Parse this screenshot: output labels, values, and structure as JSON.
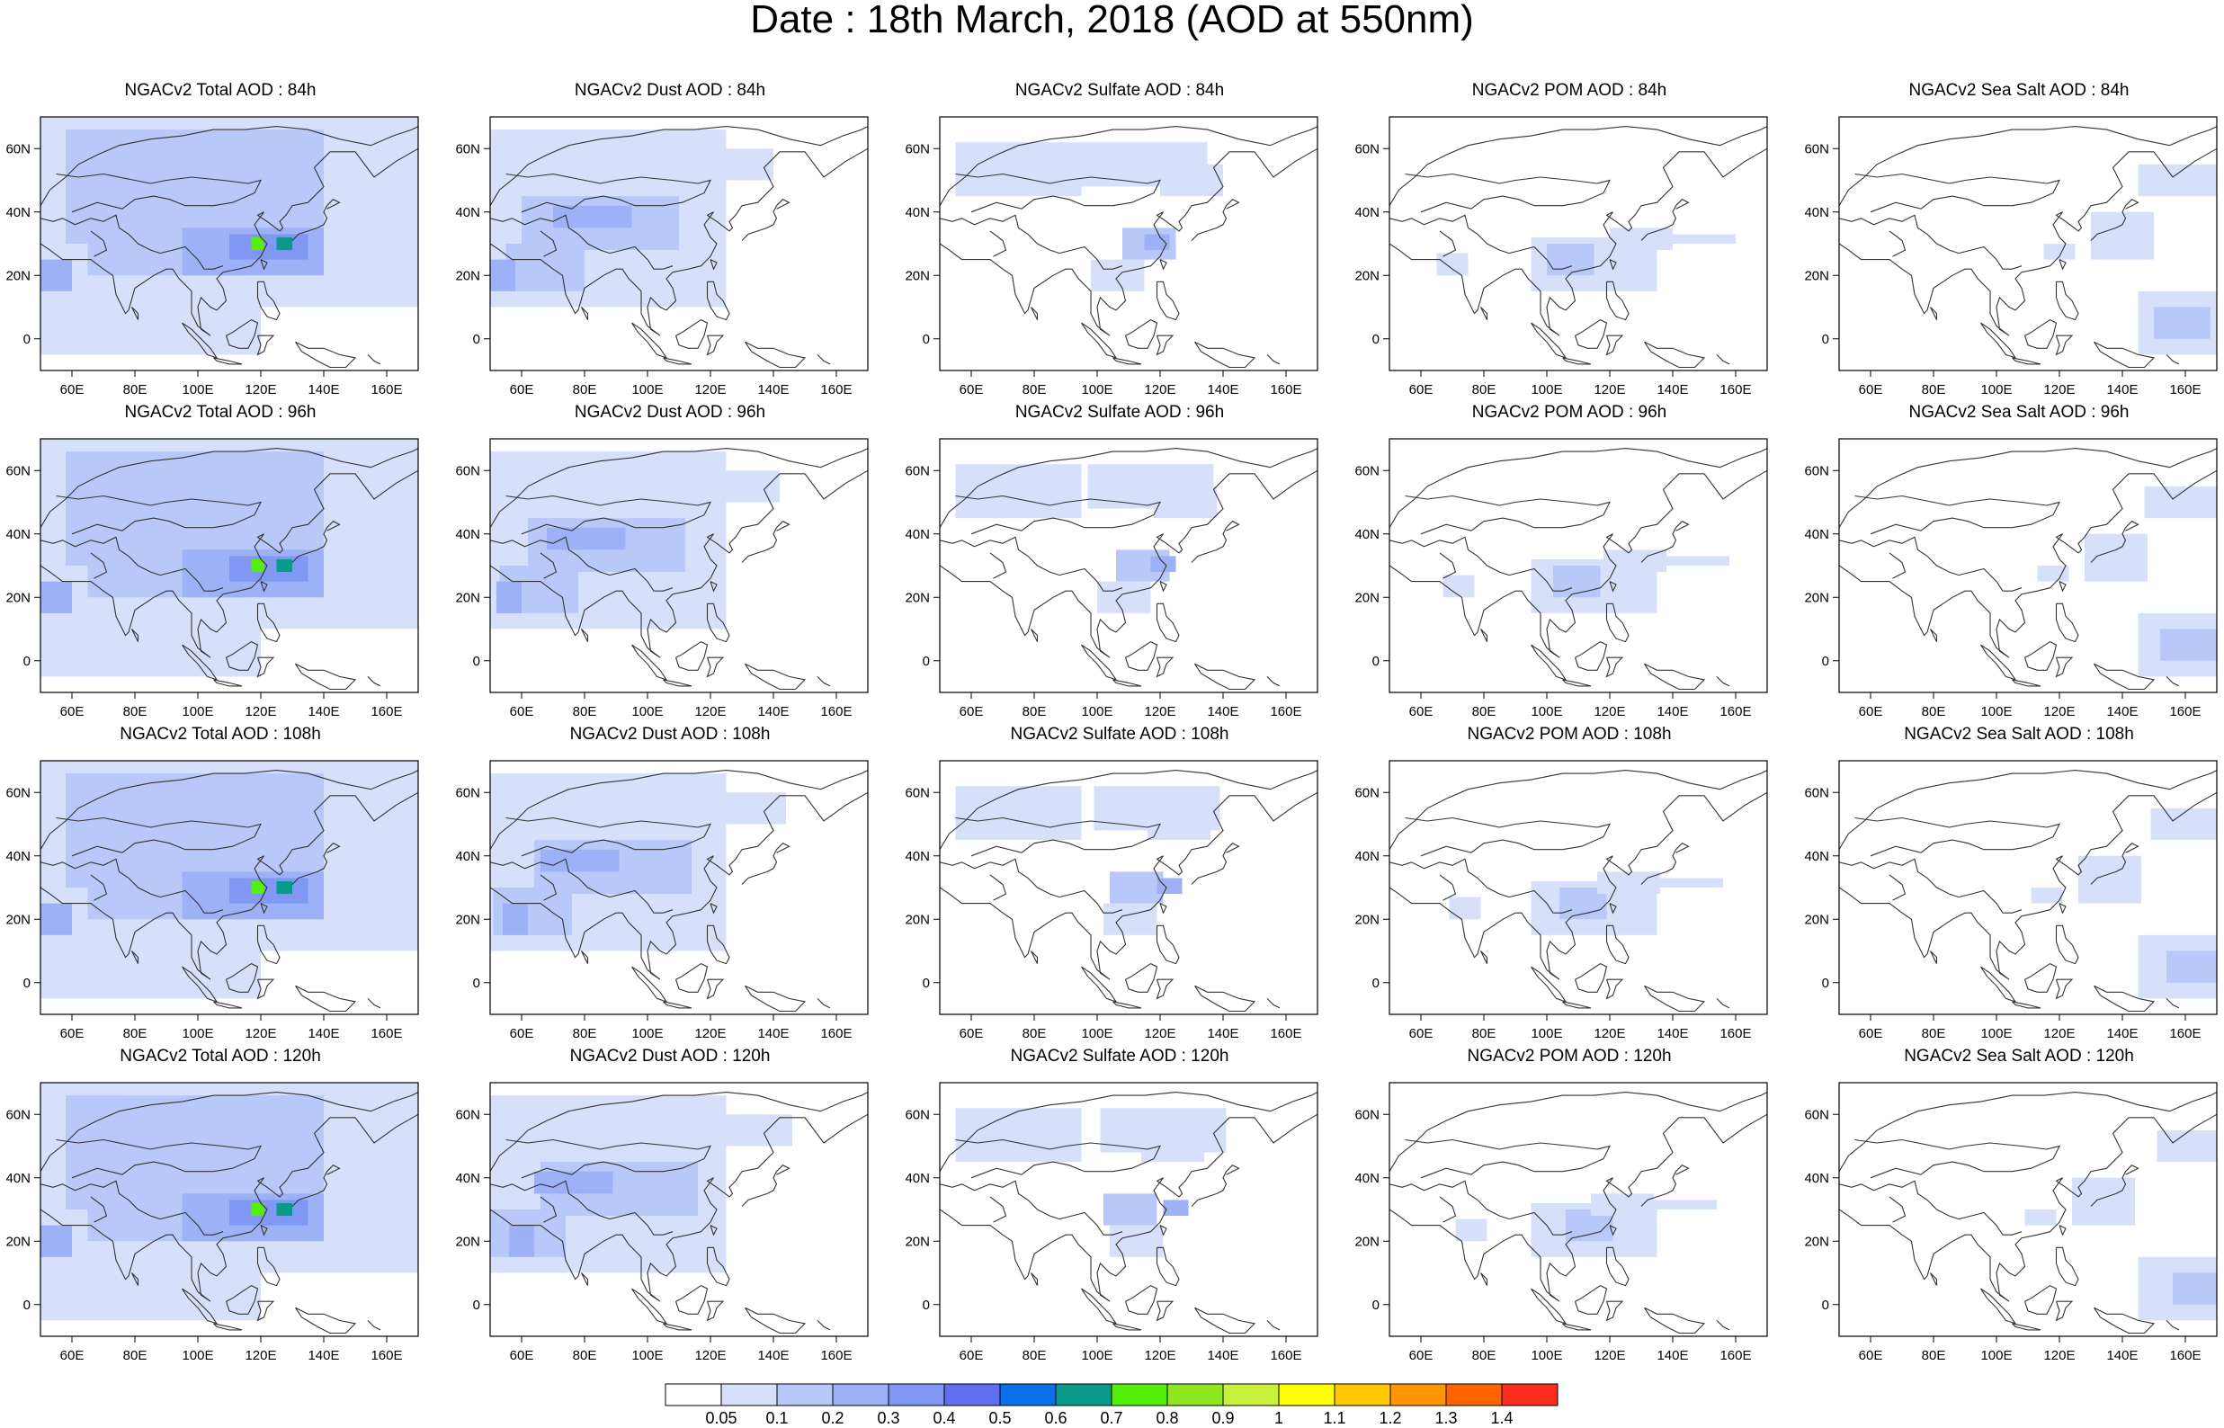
{
  "title": "Date : 18th March, 2018 (AOD at 550nm)",
  "map": {
    "lon_range": [
      50,
      170
    ],
    "lat_range": [
      -10,
      70
    ],
    "lon_ticks": [
      "60E",
      "80E",
      "100E",
      "120E",
      "140E",
      "160E"
    ],
    "lat_ticks": [
      "60N",
      "40N",
      "20N",
      "0"
    ]
  },
  "panels": [
    {
      "title": "NGACv2 Total AOD : 84h",
      "species": "total",
      "hour": 84
    },
    {
      "title": "NGACv2 Dust AOD : 84h",
      "species": "dust",
      "hour": 84
    },
    {
      "title": "NGACv2 Sulfate AOD : 84h",
      "species": "sulfate",
      "hour": 84
    },
    {
      "title": "NGACv2 POM AOD : 84h",
      "species": "pom",
      "hour": 84
    },
    {
      "title": "NGACv2 Sea Salt AOD : 84h",
      "species": "seasalt",
      "hour": 84
    },
    {
      "title": "NGACv2 Total AOD : 96h",
      "species": "total",
      "hour": 96
    },
    {
      "title": "NGACv2 Dust AOD : 96h",
      "species": "dust",
      "hour": 96
    },
    {
      "title": "NGACv2 Sulfate AOD : 96h",
      "species": "sulfate",
      "hour": 96
    },
    {
      "title": "NGACv2 POM AOD : 96h",
      "species": "pom",
      "hour": 96
    },
    {
      "title": "NGACv2 Sea Salt AOD : 96h",
      "species": "seasalt",
      "hour": 96
    },
    {
      "title": "NGACv2 Total AOD : 108h",
      "species": "total",
      "hour": 108
    },
    {
      "title": "NGACv2 Dust AOD : 108h",
      "species": "dust",
      "hour": 108
    },
    {
      "title": "NGACv2 Sulfate AOD : 108h",
      "species": "sulfate",
      "hour": 108
    },
    {
      "title": "NGACv2 POM AOD : 108h",
      "species": "pom",
      "hour": 108
    },
    {
      "title": "NGACv2 Sea Salt AOD : 108h",
      "species": "seasalt",
      "hour": 108
    },
    {
      "title": "NGACv2 Total AOD : 120h",
      "species": "total",
      "hour": 120
    },
    {
      "title": "NGACv2 Dust AOD : 120h",
      "species": "dust",
      "hour": 120
    },
    {
      "title": "NGACv2 Sulfate AOD : 120h",
      "species": "sulfate",
      "hour": 120
    },
    {
      "title": "NGACv2 POM AOD : 120h",
      "species": "pom",
      "hour": 120
    },
    {
      "title": "NGACv2 Sea Salt  AOD : 120h",
      "species": "seasalt",
      "hour": 120
    }
  ],
  "colorbar": {
    "labels": [
      "0.05",
      "0.1",
      "0.2",
      "0.3",
      "0.4",
      "0.5",
      "0.6",
      "0.7",
      "0.8",
      "0.9",
      "1",
      "1.1",
      "1.2",
      "1.3",
      "1.4"
    ],
    "colors": [
      "#ffffff",
      "#d6e0fb",
      "#b8c8f8",
      "#9db2f6",
      "#8098f3",
      "#5f6ff0",
      "#0a6fe8",
      "#0a9a8c",
      "#55f00a",
      "#8fe61e",
      "#c9f03a",
      "#ffff00",
      "#ffc800",
      "#ff9600",
      "#ff6400",
      "#ff2d1e"
    ]
  }
}
